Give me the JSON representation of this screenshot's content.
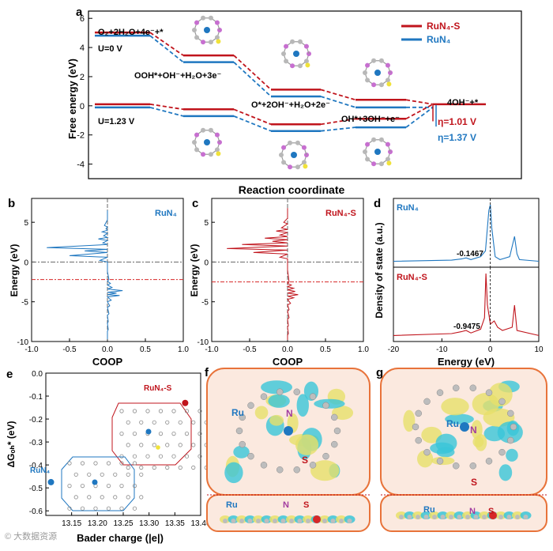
{
  "panel_labels": {
    "a": "a",
    "b": "b",
    "c": "c",
    "d": "d",
    "e": "e",
    "f": "f",
    "g": "g"
  },
  "colors": {
    "ruS": "#c0141c",
    "ru": "#1f77c0",
    "grid": "#666666",
    "rounded_box": "#e8733a",
    "iso_yellow": "#e7e06a",
    "iso_cyan": "#39c6d8"
  },
  "legend": {
    "ru_s": "RuN₄-S",
    "ru": "RuN₄"
  },
  "panel_b_label": "RuN₄",
  "panel_c_label": "RuN₄-S",
  "panel_d_top_label": "RuN₄",
  "panel_d_bottom_label": "RuN₄-S",
  "panel_e_ru_s_label": "RuN₄-S",
  "panel_e_ru_label": "RuN₄",
  "panel_f": {
    "ru": "Ru",
    "n": "N",
    "s": "S",
    "ru_side": "Ru",
    "n_side": "N",
    "s_side": "S"
  },
  "panel_g": {
    "ru": "Ru",
    "n": "N",
    "s": "S",
    "ru_side": "Ru",
    "n_side": "N",
    "s_side": "S"
  },
  "watermark": "© 大数据资源",
  "chart_data": [
    {
      "id": "a",
      "type": "line",
      "title": "",
      "xlabel": "Reaction coordinate",
      "ylabel": "Free energy (eV)",
      "ylim": [
        -5,
        6.5
      ],
      "yticks": [
        -4,
        -2,
        0,
        2,
        4,
        6
      ],
      "steps": [
        "O₂+2H₂O+4e⁻+*",
        "OOH*+OH⁻+H₂O+3e⁻",
        "O*+2OH⁻+H₂O+2e⁻",
        "OH*+3OH⁻+e⁻",
        "4OH⁻+*"
      ],
      "series": [
        {
          "name": "RuN₄-S U=0 V",
          "values": [
            4.92,
            3.35,
            1.0,
            0.3,
            0.0
          ]
        },
        {
          "name": "RuN₄ U=0 V",
          "values": [
            4.92,
            3.1,
            0.75,
            0.0,
            0.0
          ]
        },
        {
          "name": "RuN₄-S U=1.23 V",
          "values": [
            0.0,
            -0.35,
            -1.38,
            -1.0,
            0.0
          ]
        },
        {
          "name": "RuN₄ U=1.23 V",
          "values": [
            0.0,
            -0.6,
            -1.62,
            -1.37,
            0.0
          ]
        }
      ],
      "annotations": {
        "u0": "U=0 V",
        "u123": "U=1.23 V",
        "eta_ru_s": "η=1.01 V",
        "eta_ru": "η=1.37 V"
      }
    },
    {
      "id": "b",
      "type": "line",
      "xlabel": "COOP",
      "ylabel": "Energy (eV)",
      "xlim": [
        -1.0,
        1.0
      ],
      "ylim": [
        -10,
        8
      ],
      "xticks": [
        -1.0,
        -0.5,
        0.0,
        0.5,
        1.0
      ],
      "yticks": [
        -10,
        -5,
        0,
        5
      ],
      "dband_center": -2.2,
      "series": [
        {
          "name": "RuN₄",
          "y": [
            6.5,
            5.5,
            4.6,
            4.2,
            3.8,
            3.3,
            2.9,
            2.4,
            1.8,
            1.4,
            0.8,
            0.2,
            -1.0,
            -2.2,
            -2.7,
            -3.2,
            -3.6,
            -3.9,
            -4.2,
            -4.8,
            -5.5,
            -6.5,
            -7.5,
            -8.5,
            -9.5
          ],
          "x": [
            0,
            0,
            -0.04,
            -0.02,
            -0.07,
            -0.05,
            -0.12,
            -0.06,
            -0.8,
            -0.3,
            -0.5,
            -0.1,
            0,
            0.02,
            0.04,
            0.06,
            0.2,
            0.12,
            0.16,
            0.05,
            0.03,
            0.02,
            0.01,
            0.01,
            0
          ]
        }
      ]
    },
    {
      "id": "c",
      "type": "line",
      "xlabel": "COOP",
      "ylabel": "Energy (eV)",
      "xlim": [
        -1.0,
        1.0
      ],
      "ylim": [
        -10,
        8
      ],
      "xticks": [
        -1.0,
        -0.5,
        0.0,
        0.5,
        1.0
      ],
      "yticks": [
        -10,
        -5,
        0,
        5
      ],
      "dband_center": -2.5,
      "series": [
        {
          "name": "RuN₄-S",
          "y": [
            6.8,
            5.7,
            5.0,
            4.3,
            3.9,
            3.4,
            3.0,
            2.6,
            2.2,
            1.7,
            1.2,
            0.6,
            -0.8,
            -2.5,
            -2.9,
            -3.3,
            -3.7,
            -4.1,
            -4.5,
            -5.2,
            -6.0,
            -7.0,
            -8.0,
            -9.0,
            -9.6
          ],
          "x": [
            0,
            0,
            -0.05,
            -0.08,
            -0.15,
            -0.1,
            -0.3,
            -0.2,
            -0.6,
            -0.8,
            -0.45,
            -0.1,
            0,
            0.02,
            0.05,
            0.08,
            0.1,
            0.14,
            0.08,
            0.04,
            0.02,
            0.02,
            0.01,
            0.01,
            0
          ]
        }
      ]
    },
    {
      "id": "d",
      "type": "line",
      "xlabel": "Energy (eV)",
      "ylabel": "Density of state (a.u.)",
      "xlim": [
        -20,
        10
      ],
      "xticks": [
        -20,
        -10,
        0,
        10
      ],
      "annotations": {
        "top_value": "-0.1467",
        "bottom_value": "-0.9475"
      },
      "series": [
        {
          "name": "RuN₄",
          "x": [
            -20,
            -8,
            -6,
            -5,
            -4,
            -2,
            -1,
            -0.3,
            0,
            0.3,
            1,
            2,
            4,
            5,
            5.5,
            6,
            10
          ],
          "y": [
            0.02,
            0.04,
            0.06,
            0.08,
            0.05,
            0.1,
            0.2,
            0.9,
            1.0,
            0.6,
            0.1,
            0.05,
            0.1,
            0.45,
            0.15,
            0.05,
            0.02
          ]
        },
        {
          "name": "RuN₄-S",
          "x": [
            -20,
            -8,
            -6,
            -5,
            -4,
            -2,
            -1.2,
            -0.9,
            -0.6,
            0,
            0.8,
            1.5,
            2.5,
            4.5,
            5,
            5.5,
            10
          ],
          "y": [
            0.02,
            0.05,
            0.08,
            0.1,
            0.06,
            0.12,
            0.3,
            1.0,
            0.5,
            0.2,
            0.25,
            0.15,
            0.1,
            0.15,
            0.5,
            0.1,
            0.02
          ]
        }
      ]
    },
    {
      "id": "e",
      "type": "scatter",
      "xlabel": "Bader charge (|e|)",
      "ylabel": "ΔGₒₕ* (eV)",
      "xlim": [
        13.1,
        13.4
      ],
      "ylim": [
        -0.62,
        0.0
      ],
      "xticks": [
        13.15,
        13.2,
        13.25,
        13.3,
        13.35,
        13.4
      ],
      "yticks": [
        0.0,
        -0.1,
        -0.2,
        -0.3,
        -0.4,
        -0.5,
        -0.6
      ],
      "points": [
        {
          "name": "RuN₄-S",
          "x": 13.37,
          "y": -0.13
        },
        {
          "name": "RuN₄",
          "x": 13.11,
          "y": -0.475
        }
      ]
    }
  ]
}
